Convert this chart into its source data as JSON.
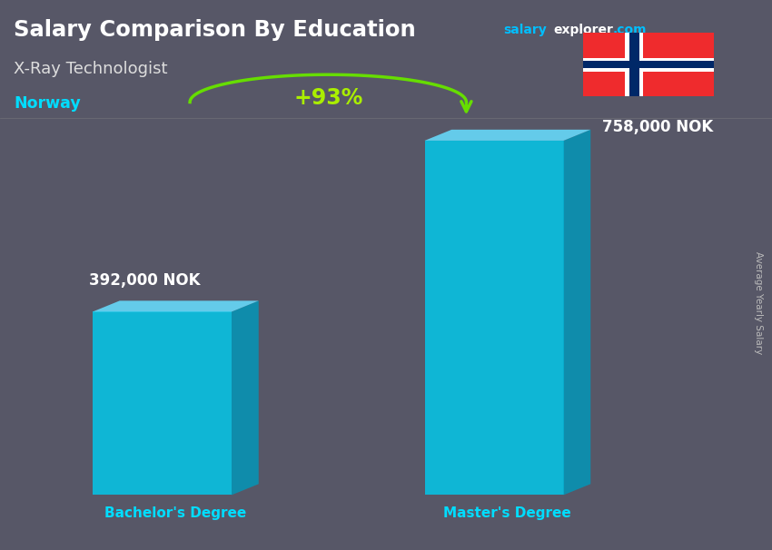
{
  "title": "Salary Comparison By Education",
  "subtitle_job": "X-Ray Technologist",
  "subtitle_country": "Norway",
  "ylabel": "Average Yearly Salary",
  "categories": [
    "Bachelor's Degree",
    "Master's Degree"
  ],
  "values": [
    392000,
    758000
  ],
  "value_labels": [
    "392,000 NOK",
    "758,000 NOK"
  ],
  "pct_change": "+93%",
  "bar_color_face": "#00CCEE",
  "bar_color_right": "#0099BB",
  "bar_color_top": "#66DDFF",
  "bar_alpha": 0.82,
  "bg_color": "#6a6a7a",
  "title_color": "#FFFFFF",
  "job_color": "#DDDDDD",
  "country_color": "#00DDFF",
  "label_color": "#FFFFFF",
  "xticklabel_color": "#00DDFF",
  "pct_color": "#AAEE00",
  "pct_arrow_color": "#66DD00",
  "brand_salary_color": "#00BFFF",
  "brand_explorer_color": "#FFFFFF",
  "brand_com_color": "#00BFFF",
  "figsize": [
    8.5,
    6.06
  ],
  "dpi": 100
}
